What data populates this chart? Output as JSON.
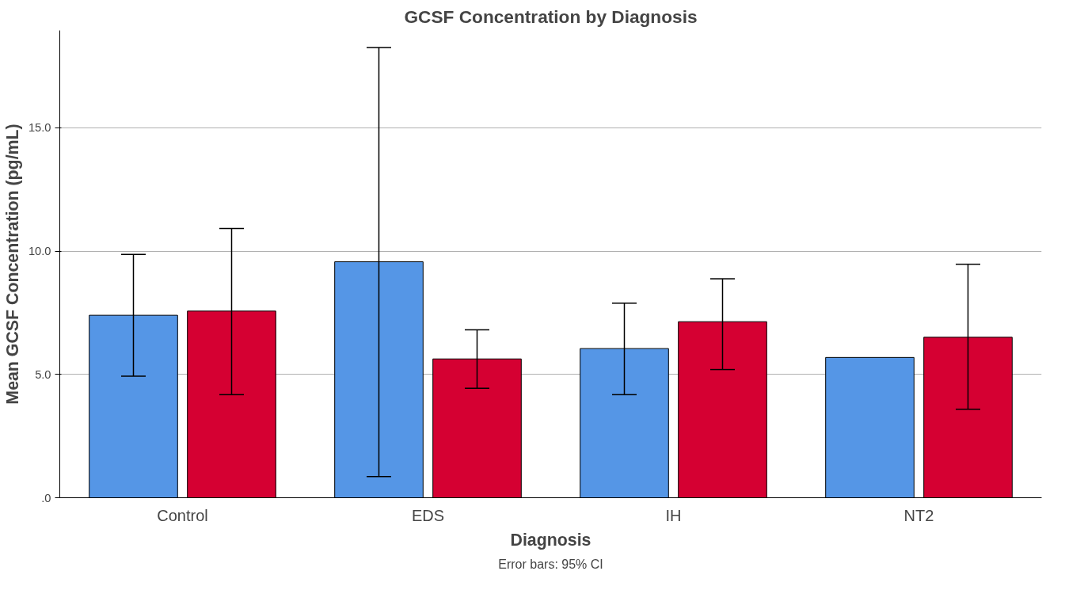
{
  "chart_data": {
    "type": "bar",
    "title": "GCSF Concentration by Diagnosis",
    "xlabel": "Diagnosis",
    "ylabel": "Mean GCSF Concentration (pg/mL)",
    "categories": [
      "Control",
      "EDS",
      "IH",
      "NT2"
    ],
    "series": [
      {
        "color": "#5596e6",
        "values": [
          7.4,
          9.57,
          6.05,
          5.69
        ],
        "errors": [
          [
            4.93,
            9.87
          ],
          [
            0.86,
            18.26
          ],
          [
            4.18,
            7.89
          ],
          null
        ]
      },
      {
        "color": "#d50032",
        "values": [
          7.57,
          5.63,
          7.14,
          6.51
        ],
        "errors": [
          [
            4.18,
            10.92
          ],
          [
            4.44,
            6.81
          ],
          [
            5.2,
            8.88
          ],
          [
            3.59,
            9.47
          ]
        ]
      }
    ],
    "ylim": [
      0,
      18.95
    ],
    "yticks": [
      {
        "value": 0,
        "label": ".0"
      },
      {
        "value": 5,
        "label": "5.0"
      },
      {
        "value": 10,
        "label": "10.0"
      },
      {
        "value": 15,
        "label": "15.0"
      }
    ],
    "grid": "y",
    "annotations": [
      "Error bars: 95% CI"
    ]
  }
}
